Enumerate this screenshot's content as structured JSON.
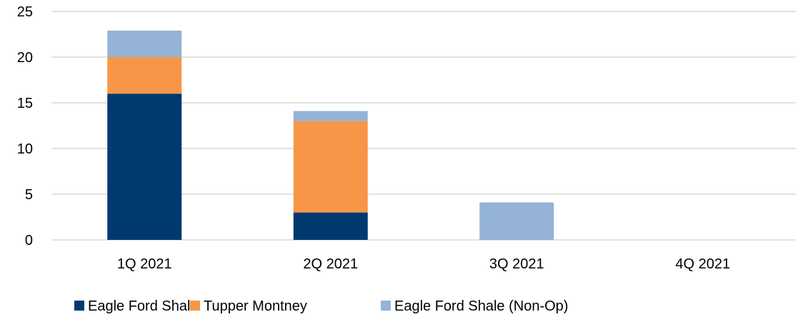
{
  "chart_data": {
    "type": "bar",
    "stacked": true,
    "categories": [
      "1Q 2021",
      "2Q 2021",
      "3Q 2021",
      "4Q 2021"
    ],
    "series": [
      {
        "name": "Eagle Ford Shale",
        "color": "#003a70",
        "values": [
          16,
          3,
          0,
          0
        ]
      },
      {
        "name": "Tupper Montney",
        "color": "#f79646",
        "values": [
          4,
          10,
          0,
          0
        ]
      },
      {
        "name": "Eagle Ford Shale (Non-Op)",
        "color": "#95b3d7",
        "values": [
          2.9,
          1.1,
          4.1,
          0
        ]
      }
    ],
    "ylim": [
      0,
      25
    ],
    "yticks": [
      0,
      5,
      10,
      15,
      20,
      25
    ],
    "grid": true,
    "gridline_color": "#d9d9d9",
    "legend_position": "bottom",
    "title": "",
    "xlabel": "",
    "ylabel": ""
  }
}
